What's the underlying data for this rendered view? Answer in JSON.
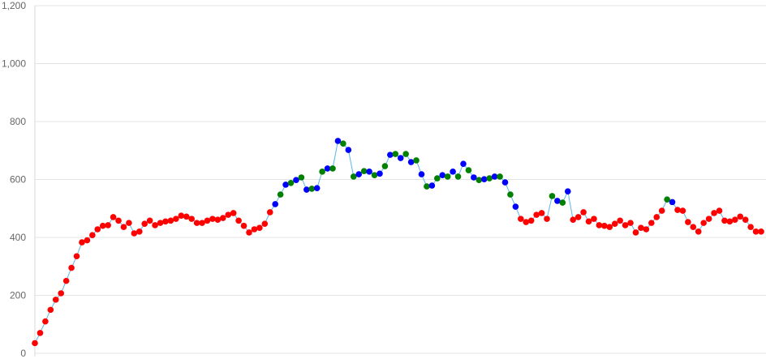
{
  "chart_data": {
    "type": "scatter",
    "title": "",
    "xlabel": "",
    "ylabel": "",
    "ylim": [
      0,
      1200
    ],
    "yticks": [
      0,
      200,
      400,
      600,
      800,
      1000,
      1200
    ],
    "ytick_labels": [
      "0",
      "200",
      "400",
      "600",
      "800",
      "1,000",
      "1,200"
    ],
    "grid": true,
    "connecting_line": true,
    "colors": {
      "line": "#5bb5ee",
      "red": "#ff0000",
      "blue": "#0000ff",
      "green": "#008000",
      "grid": "#e3e3e3"
    },
    "values": [
      35,
      70,
      110,
      150,
      185,
      207,
      250,
      295,
      335,
      383,
      390,
      408,
      428,
      440,
      442,
      470,
      458,
      436,
      450,
      414,
      420,
      447,
      458,
      442,
      450,
      455,
      458,
      464,
      475,
      472,
      464,
      450,
      450,
      458,
      464,
      461,
      467,
      478,
      484,
      458,
      440,
      417,
      428,
      433,
      447,
      487,
      515,
      548,
      582,
      588,
      598,
      607,
      565,
      568,
      570,
      627,
      638,
      638,
      733,
      724,
      702,
      610,
      618,
      629,
      627,
      615,
      620,
      646,
      685,
      688,
      674,
      688,
      660,
      666,
      618,
      576,
      579,
      604,
      615,
      610,
      627,
      610,
      654,
      632,
      607,
      598,
      601,
      604,
      610,
      610,
      590,
      548,
      506,
      464,
      453,
      458,
      478,
      484,
      464,
      543,
      526,
      520,
      559,
      461,
      470,
      487,
      455,
      464,
      442,
      440,
      436,
      447,
      458,
      442,
      450,
      417,
      433,
      428,
      450,
      470,
      492,
      531,
      522,
      495,
      492,
      453,
      436,
      420,
      450,
      464,
      484,
      492,
      458,
      455,
      461,
      472,
      461,
      436,
      420,
      420
    ],
    "color_runs": [
      [
        "red",
        46
      ],
      [
        "blue-green",
        47
      ],
      [
        "red",
        6
      ],
      [
        "blue-green",
        4
      ],
      [
        "red",
        18
      ],
      [
        "blue-green",
        2
      ],
      [
        "red",
        17
      ]
    ]
  }
}
